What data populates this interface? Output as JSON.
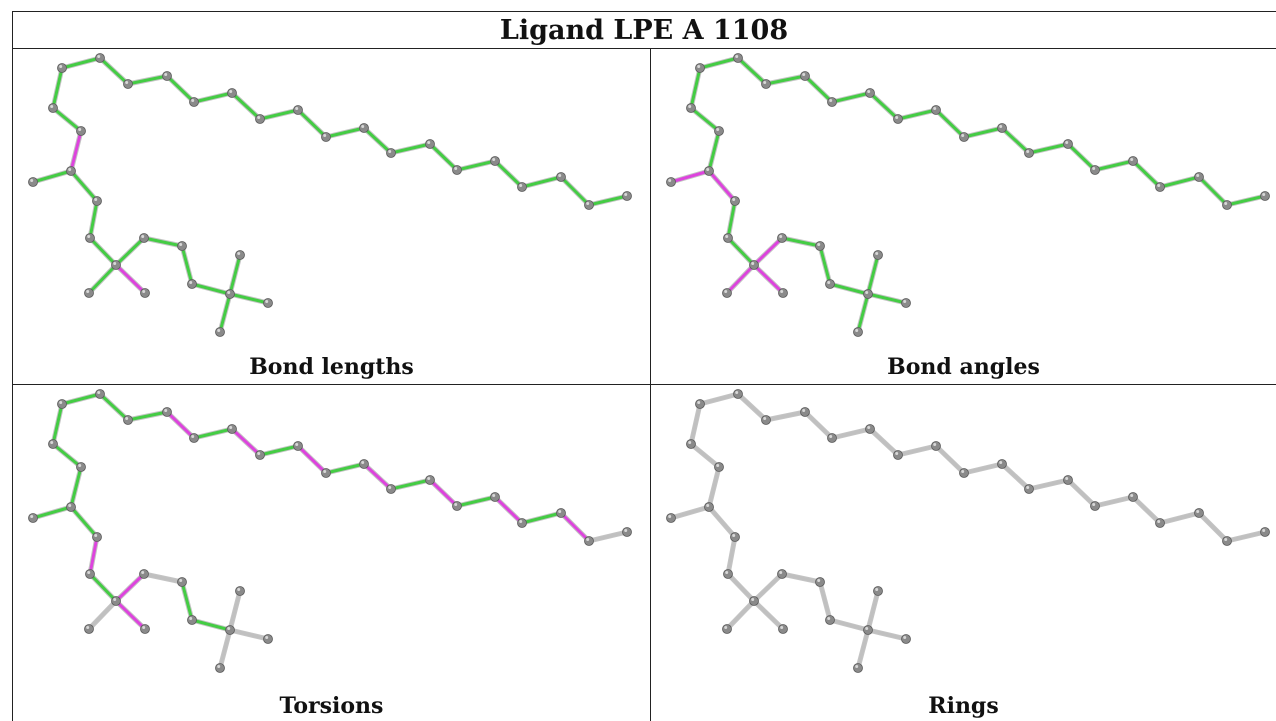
{
  "title": "Ligand LPE A 1108",
  "colors": {
    "ok": "#44cc44",
    "outlier": "#dd44dd",
    "none": "#c0c0c0",
    "atom": "#8a8a8a"
  },
  "panels": [
    {
      "caption": "Bond lengths",
      "bond_status": [
        "g",
        "g",
        "g",
        "g",
        "g",
        "g",
        "g",
        "g",
        "g",
        "g",
        "g",
        "g",
        "g",
        "g",
        "g",
        "g",
        "g",
        "g",
        "g",
        "m",
        "g",
        "g",
        "g",
        "g",
        "g",
        "m",
        "g",
        "g",
        "g",
        "g",
        "g",
        "g",
        "g"
      ]
    },
    {
      "caption": "Bond angles",
      "bond_status": [
        "g",
        "g",
        "g",
        "g",
        "g",
        "g",
        "g",
        "g",
        "g",
        "g",
        "g",
        "g",
        "g",
        "g",
        "g",
        "g",
        "g",
        "g",
        "g",
        "g",
        "m",
        "m",
        "g",
        "g",
        "m",
        "m",
        "m",
        "g",
        "g",
        "g",
        "g",
        "g",
        "g"
      ]
    },
    {
      "caption": "Torsions",
      "bond_status": [
        "n",
        "m",
        "g",
        "m",
        "g",
        "m",
        "g",
        "m",
        "g",
        "m",
        "g",
        "m",
        "g",
        "m",
        "g",
        "g",
        "g",
        "g",
        "g",
        "g",
        "g",
        "g",
        "m",
        "g",
        "m",
        "m",
        "n",
        "n",
        "g",
        "g",
        "n",
        "n",
        "n"
      ]
    },
    {
      "caption": "Rings",
      "bond_status": [
        "n",
        "n",
        "n",
        "n",
        "n",
        "n",
        "n",
        "n",
        "n",
        "n",
        "n",
        "n",
        "n",
        "n",
        "n",
        "n",
        "n",
        "n",
        "n",
        "n",
        "n",
        "n",
        "n",
        "n",
        "n",
        "n",
        "n",
        "n",
        "n",
        "n",
        "n",
        "n",
        "n"
      ]
    }
  ]
}
